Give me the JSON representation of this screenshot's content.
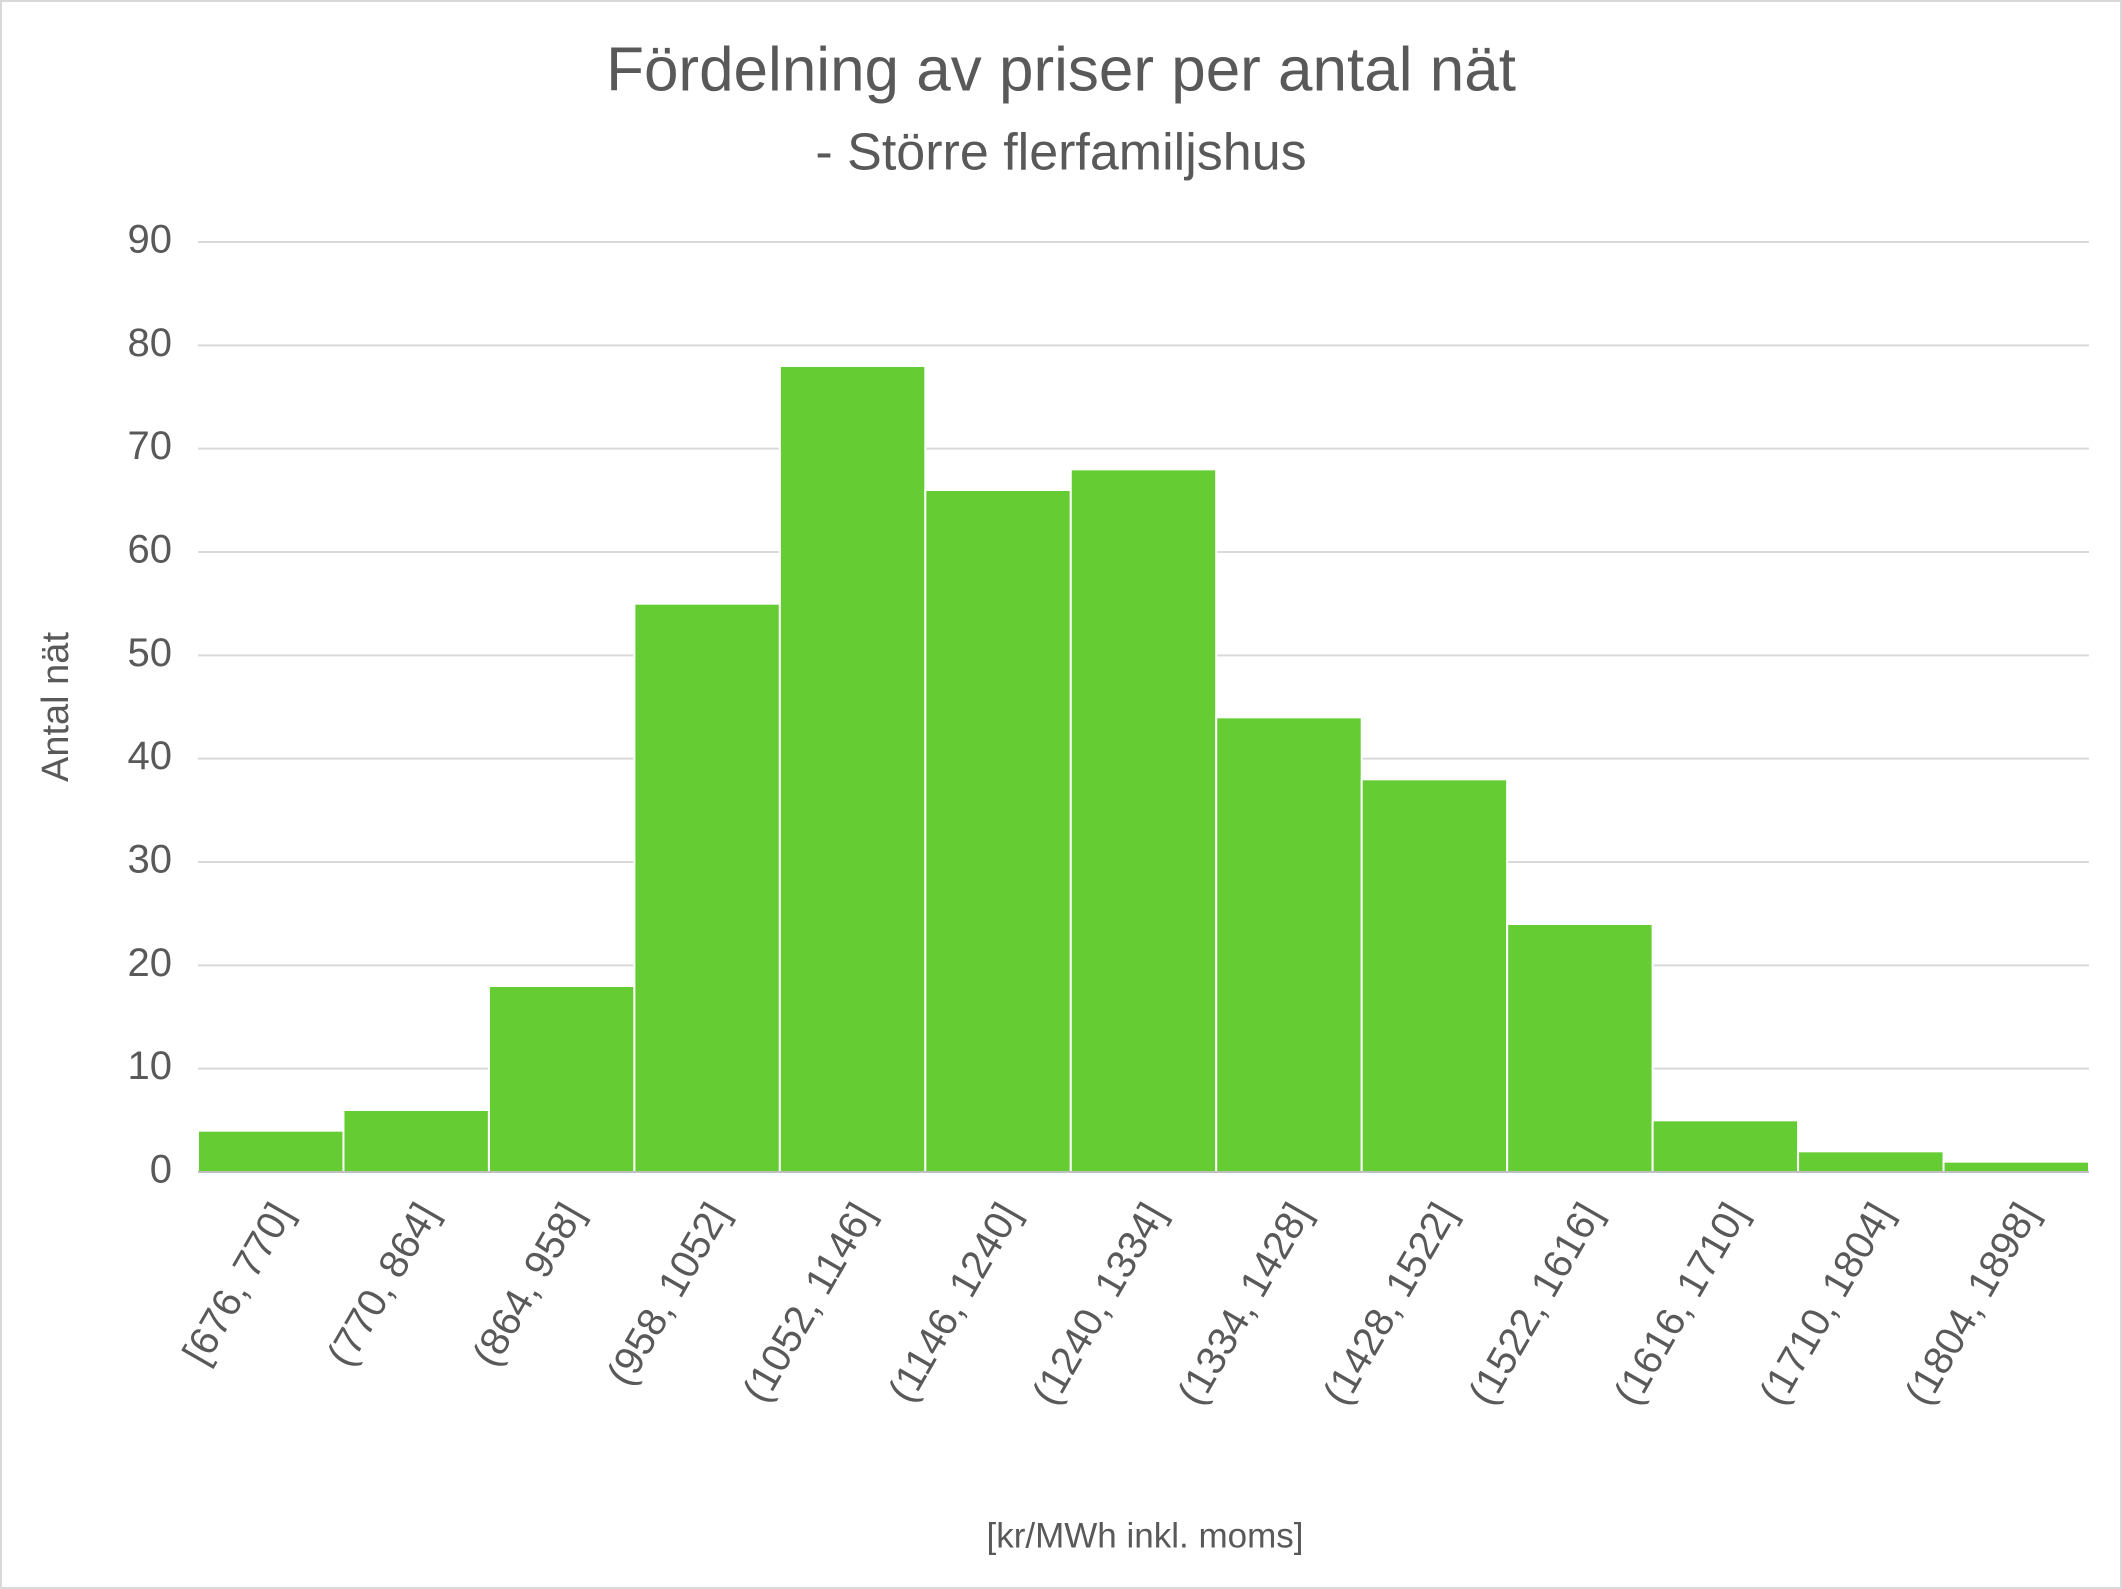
{
  "chart_data": {
    "type": "bar",
    "title": "Fördelning av priser per antal nät",
    "subtitle": "- Större flerfamiljshus",
    "y_label": "Antal nät",
    "x_label": "[kr/MWh inkl. moms]",
    "categories": [
      "[676, 770]",
      "(770, 864]",
      "(864, 958]",
      "(958, 1052]",
      "(1052, 1146]",
      "(1146, 1240]",
      "(1240, 1334]",
      "(1334, 1428]",
      "(1428, 1522]",
      "(1522, 1616]",
      "(1616, 1710]",
      "(1710, 1804]",
      "(1804, 1898]"
    ],
    "values": [
      4,
      6,
      18,
      55,
      78,
      66,
      68,
      44,
      38,
      24,
      5,
      2,
      1
    ],
    "color": "#66cc33",
    "ylim": [
      0,
      90
    ],
    "yticks": [
      0,
      10,
      20,
      30,
      40,
      50,
      60,
      70,
      80,
      90
    ],
    "grid": true
  }
}
